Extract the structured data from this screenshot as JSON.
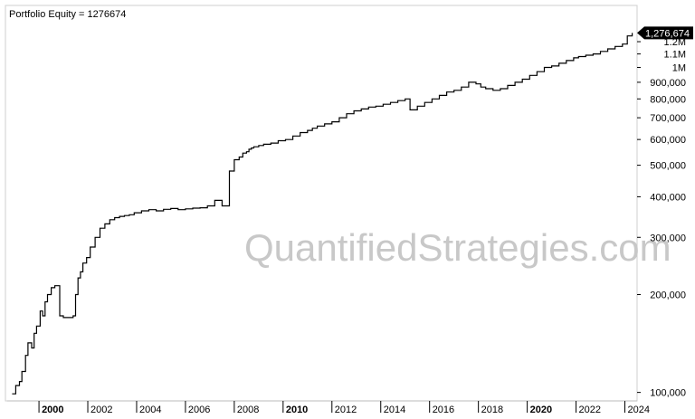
{
  "title": "Portfolio Equity = 1276674",
  "watermark": "QuantifiedStrategies.com",
  "chart_data": {
    "type": "line",
    "title": "Portfolio Equity = 1276674",
    "xlabel": "",
    "ylabel": "",
    "y_scale": "log",
    "ylim": [
      96000,
      1400000
    ],
    "xlim": [
      1998.7,
      2024.5
    ],
    "grid": false,
    "last_value_label": "1,276,674",
    "x_ticks": [
      {
        "value": 2000,
        "label": "2000",
        "bold": true
      },
      {
        "value": 2002,
        "label": "2002",
        "bold": false
      },
      {
        "value": 2004,
        "label": "2004",
        "bold": false
      },
      {
        "value": 2006,
        "label": "2006",
        "bold": false
      },
      {
        "value": 2008,
        "label": "2008",
        "bold": false
      },
      {
        "value": 2010,
        "label": "2010",
        "bold": true
      },
      {
        "value": 2012,
        "label": "2012",
        "bold": false
      },
      {
        "value": 2014,
        "label": "2014",
        "bold": false
      },
      {
        "value": 2016,
        "label": "2016",
        "bold": false
      },
      {
        "value": 2018,
        "label": "2018",
        "bold": false
      },
      {
        "value": 2020,
        "label": "2020",
        "bold": true
      },
      {
        "value": 2022,
        "label": "2022",
        "bold": false
      },
      {
        "value": 2024,
        "label": "2024",
        "bold": false
      }
    ],
    "y_ticks": [
      {
        "value": 1200000,
        "label": "1.2M"
      },
      {
        "value": 1100000,
        "label": "1.1M"
      },
      {
        "value": 1000000,
        "label": "1M"
      },
      {
        "value": 900000,
        "label": "900,000"
      },
      {
        "value": 800000,
        "label": "800,000"
      },
      {
        "value": 700000,
        "label": "700,000"
      },
      {
        "value": 600000,
        "label": "600,000"
      },
      {
        "value": 500000,
        "label": "500,000"
      },
      {
        "value": 400000,
        "label": "400,000"
      },
      {
        "value": 300000,
        "label": "300,000"
      },
      {
        "value": 200000,
        "label": "200,000"
      },
      {
        "value": 100000,
        "label": "100,000"
      }
    ],
    "series": [
      {
        "color": "#000000",
        "x": [
          1998.9,
          1999.05,
          1999.2,
          1999.3,
          1999.45,
          1999.55,
          1999.7,
          1999.8,
          1999.9,
          2000.05,
          2000.15,
          2000.25,
          2000.35,
          2000.5,
          2000.65,
          2000.85,
          2001.0,
          2001.4,
          2001.5,
          2001.6,
          2001.7,
          2001.8,
          2001.95,
          2002.1,
          2002.3,
          2002.5,
          2002.7,
          2002.9,
          2003.1,
          2003.3,
          2003.5,
          2003.7,
          2003.9,
          2004.2,
          2004.5,
          2004.8,
          2005.1,
          2005.4,
          2005.7,
          2006.0,
          2006.3,
          2006.6,
          2006.9,
          2007.2,
          2007.5,
          2007.8,
          2008.0,
          2008.2,
          2008.35,
          2008.5,
          2008.6,
          2008.7,
          2008.8,
          2009.0,
          2009.2,
          2009.5,
          2009.8,
          2010.1,
          2010.4,
          2010.7,
          2011.0,
          2011.2,
          2011.4,
          2011.7,
          2012.0,
          2012.3,
          2012.6,
          2012.9,
          2013.2,
          2013.5,
          2013.8,
          2014.1,
          2014.4,
          2014.7,
          2015.0,
          2015.2,
          2015.5,
          2015.8,
          2016.1,
          2016.4,
          2016.7,
          2017.0,
          2017.3,
          2017.6,
          2017.9,
          2018.1,
          2018.3,
          2018.6,
          2018.9,
          2019.2,
          2019.5,
          2019.8,
          2020.1,
          2020.4,
          2020.7,
          2021.0,
          2021.3,
          2021.6,
          2021.9,
          2022.1,
          2022.4,
          2022.7,
          2023.0,
          2023.3,
          2023.6,
          2023.9,
          2024.1,
          2024.3
        ],
        "y": [
          99000,
          105000,
          108000,
          116000,
          130000,
          142000,
          137000,
          152000,
          160000,
          178000,
          172000,
          190000,
          200000,
          210000,
          213000,
          172000,
          170000,
          172000,
          200000,
          225000,
          235000,
          250000,
          260000,
          280000,
          300000,
          320000,
          330000,
          340000,
          345000,
          348000,
          350000,
          352000,
          357000,
          362000,
          365000,
          362000,
          366000,
          368000,
          365000,
          367000,
          369000,
          370000,
          375000,
          390000,
          375000,
          480000,
          520000,
          530000,
          545000,
          550000,
          560000,
          565000,
          570000,
          575000,
          580000,
          585000,
          595000,
          600000,
          615000,
          630000,
          640000,
          650000,
          660000,
          670000,
          680000,
          700000,
          720000,
          735000,
          745000,
          755000,
          760000,
          770000,
          780000,
          790000,
          800000,
          740000,
          760000,
          780000,
          800000,
          820000,
          840000,
          850000,
          870000,
          900000,
          890000,
          870000,
          860000,
          850000,
          860000,
          880000,
          900000,
          920000,
          945000,
          970000,
          1000000,
          1010000,
          1030000,
          1050000,
          1070000,
          1080000,
          1090000,
          1100000,
          1120000,
          1140000,
          1160000,
          1180000,
          1250000,
          1276674
        ]
      }
    ]
  }
}
